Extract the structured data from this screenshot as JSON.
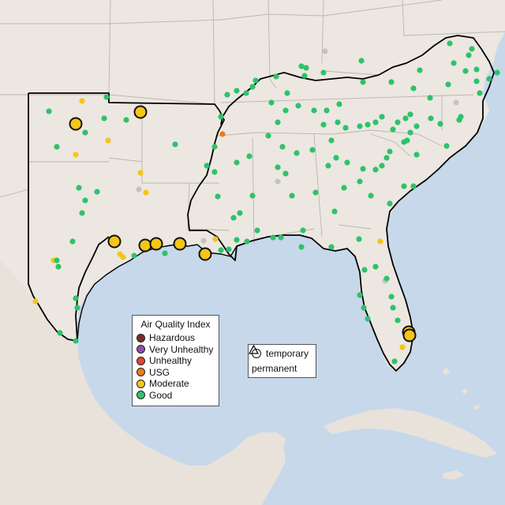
{
  "legend": {
    "title": "Air Quality Index",
    "categories": [
      {
        "label": "Hazardous",
        "color": "#7e2b2b"
      },
      {
        "label": "Very Unhealthy",
        "color": "#8e4fa6"
      },
      {
        "label": "Unhealthy",
        "color": "#e3442f"
      },
      {
        "label": "USG",
        "color": "#ec7a1c"
      },
      {
        "label": "Moderate",
        "color": "#f5c518"
      },
      {
        "label": "Good",
        "color": "#2ec26b"
      }
    ]
  },
  "type_legend": {
    "temporary": "temporary",
    "permanent": "permanent"
  },
  "colors": {
    "water": "#c6d8ea",
    "land": "#ece7e1",
    "boundary": "#bdb5ae",
    "region_outline": "#000000",
    "no_data": "#c4c4c4"
  }
}
